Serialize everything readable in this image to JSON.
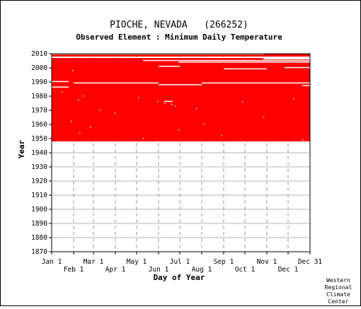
{
  "chart_data": {
    "type": "heatmap",
    "title": "PIOCHE, NEVADA   (266252)",
    "subtitle": "Observed Element : Minimum Daily Temperature",
    "xlabel": "Day of Year",
    "ylabel": "Year",
    "xlim": [
      1,
      366
    ],
    "ylim": [
      1870,
      2010
    ],
    "yticks": [
      1870,
      1880,
      1890,
      1900,
      1910,
      1920,
      1930,
      1940,
      1950,
      1960,
      1970,
      1980,
      1990,
      2000,
      2010
    ],
    "xticks_top_row": [
      {
        "label": "Jan 1",
        "day": 1
      },
      {
        "label": "Mar 1",
        "day": 60
      },
      {
        "label": "May 1",
        "day": 121
      },
      {
        "label": "Jul 1",
        "day": 182
      },
      {
        "label": "Sep 1",
        "day": 244
      },
      {
        "label": "Nov 1",
        "day": 305
      },
      {
        "label": "Dec 31",
        "day": 366
      }
    ],
    "xticks_bottom_row": [
      {
        "label": "Feb 1",
        "day": 32
      },
      {
        "label": "Apr 1",
        "day": 91
      },
      {
        "label": "Jun 1",
        "day": 152
      },
      {
        "label": "Aug 1",
        "day": 213
      },
      {
        "label": "Oct 1",
        "day": 274
      },
      {
        "label": "Dec 1",
        "day": 335
      }
    ],
    "grid": true,
    "data_color": "#ff0000",
    "coverage_blocks": [
      {
        "years": [
          1948,
          2006
        ],
        "days": [
          1,
          366
        ]
      },
      {
        "years": [
          2006,
          2007
        ],
        "days": [
          1,
          300
        ]
      },
      {
        "years": [
          2008,
          2009.5
        ],
        "days": [
          1,
          366
        ]
      },
      {
        "years": [
          2009.5,
          2010
        ],
        "days": [
          300,
          366
        ]
      }
    ],
    "missing_segments": [
      {
        "years": [
          2005.3,
          2005.6
        ],
        "days": [
          130,
          366
        ]
      },
      {
        "years": [
          2004.2,
          2004.5
        ],
        "days": [
          180,
          366
        ]
      },
      {
        "years": [
          2001.2,
          2001.5
        ],
        "days": [
          152,
          182
        ]
      },
      {
        "years": [
          2000.3,
          2000.6
        ],
        "days": [
          330,
          366
        ]
      },
      {
        "years": [
          1999.4,
          1999.7
        ],
        "days": [
          244,
          305
        ]
      },
      {
        "years": [
          1990.4,
          1990.7
        ],
        "days": [
          1,
          25
        ]
      },
      {
        "years": [
          1989.4,
          1989.7
        ],
        "days": [
          32,
          152
        ]
      },
      {
        "years": [
          1989.4,
          1989.7
        ],
        "days": [
          213,
          366
        ]
      },
      {
        "years": [
          1988.2,
          1988.5
        ],
        "days": [
          152,
          213
        ]
      },
      {
        "years": [
          1987.6,
          1987.9
        ],
        "days": [
          355,
          366
        ]
      },
      {
        "years": [
          1986.5,
          1986.8
        ],
        "days": [
          1,
          25
        ]
      },
      {
        "years": [
          1976.4,
          1976.7
        ],
        "days": [
          160,
          172
        ]
      }
    ],
    "missing_days": [
      {
        "year": 1998,
        "day": 30
      },
      {
        "year": 1983,
        "day": 15
      },
      {
        "year": 1980,
        "day": 45
      },
      {
        "year": 1979,
        "day": 123
      },
      {
        "year": 1977,
        "day": 38
      },
      {
        "year": 1976,
        "day": 150
      },
      {
        "year": 1975,
        "day": 160
      },
      {
        "year": 1974,
        "day": 170
      },
      {
        "year": 1973,
        "day": 175
      },
      {
        "year": 1971,
        "day": 205
      },
      {
        "year": 1970,
        "day": 68
      },
      {
        "year": 1968,
        "day": 90
      },
      {
        "year": 1962,
        "day": 28
      },
      {
        "year": 1958,
        "day": 55
      },
      {
        "year": 1956,
        "day": 180
      },
      {
        "year": 1954,
        "day": 40
      },
      {
        "year": 1952,
        "day": 240
      },
      {
        "year": 1950,
        "day": 130
      },
      {
        "year": 1949,
        "day": 355
      },
      {
        "year": 1976,
        "day": 270
      },
      {
        "year": 1978,
        "day": 342
      },
      {
        "year": 1965,
        "day": 300
      },
      {
        "year": 1960,
        "day": 215
      }
    ]
  },
  "credit": [
    "Western",
    "Regional",
    "Climate",
    "Center"
  ]
}
